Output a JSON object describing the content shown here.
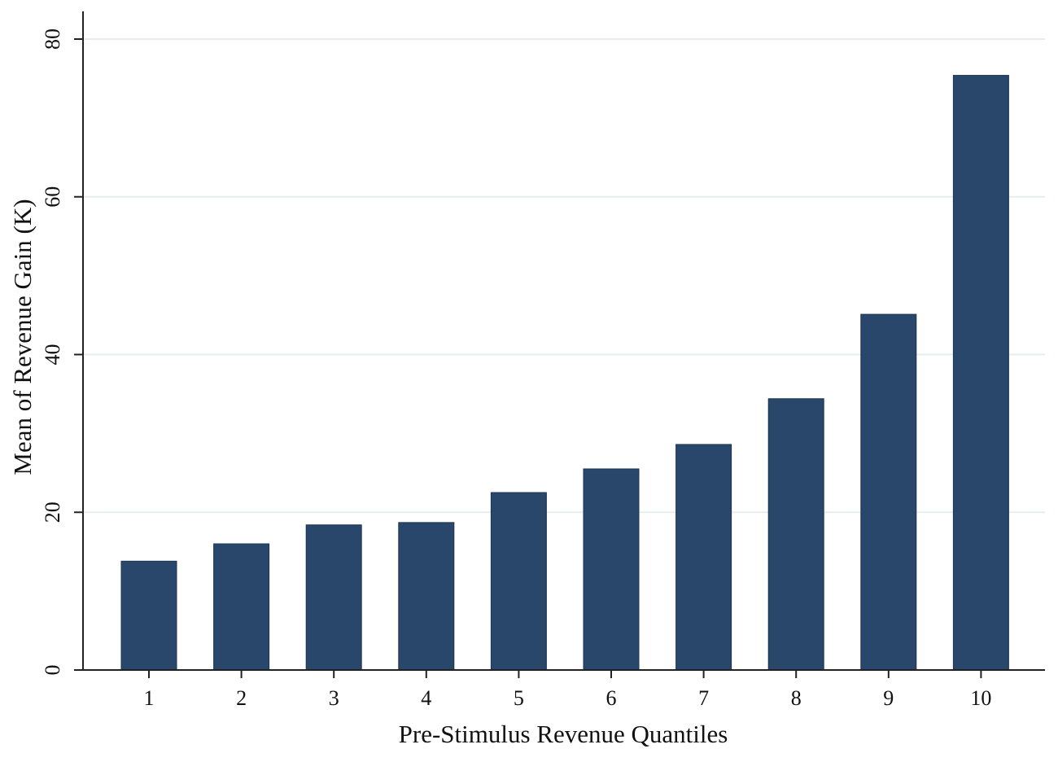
{
  "chart_data": {
    "type": "bar",
    "title": "",
    "xlabel": "Pre-Stimulus Revenue Quantiles",
    "ylabel": "Mean of Revenue Gain (K)",
    "categories": [
      "1",
      "2",
      "3",
      "4",
      "5",
      "6",
      "7",
      "8",
      "9",
      "10"
    ],
    "values": [
      13.8,
      16.0,
      18.4,
      18.7,
      22.5,
      25.5,
      28.6,
      34.4,
      45.1,
      75.4
    ],
    "ylim": [
      0,
      80
    ],
    "yticks": [
      0,
      20,
      40,
      60,
      80
    ],
    "grid": true,
    "legend": "none",
    "colors": {
      "bar": "#28476b",
      "bar_edge": "#1c3554",
      "grid": "#e6eef1",
      "axis": "#222222"
    }
  }
}
